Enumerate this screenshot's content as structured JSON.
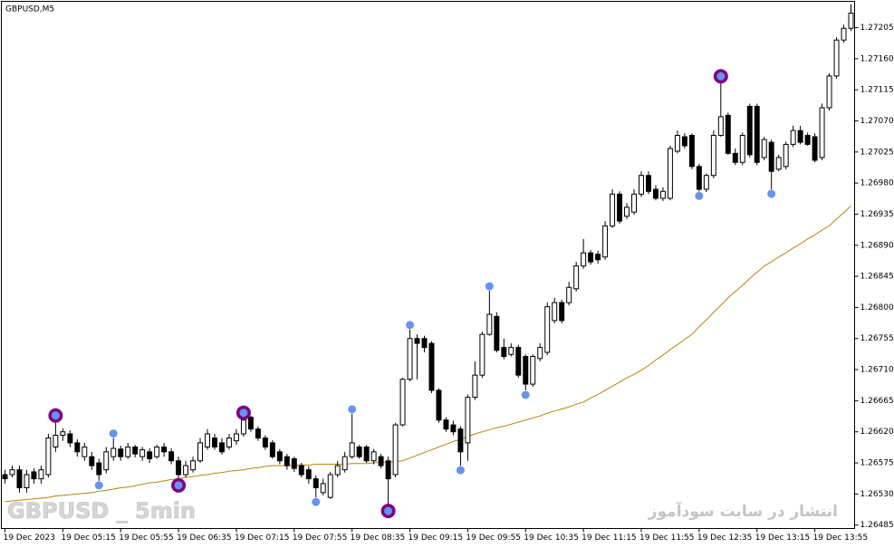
{
  "chart_data": {
    "type": "candlestick",
    "title": "GBPUSD,M5",
    "watermarks": [
      "GBPUSD _ 5min",
      "انتشار در سایت سودآموز"
    ],
    "categories": [
      "19 Dec 2023",
      null,
      null,
      null,
      null,
      null,
      null,
      null,
      "19 Dec 05:15",
      null,
      null,
      null,
      null,
      null,
      null,
      null,
      "19 Dec 05:55",
      null,
      null,
      null,
      null,
      null,
      null,
      null,
      "19 Dec 06:35",
      null,
      null,
      null,
      null,
      null,
      null,
      null,
      "19 Dec 07:15",
      null,
      null,
      null,
      null,
      null,
      null,
      null,
      "19 Dec 07:55",
      null,
      null,
      null,
      null,
      null,
      null,
      null,
      "19 Dec 08:35",
      null,
      null,
      null,
      null,
      null,
      null,
      null,
      "19 Dec 09:15",
      null,
      null,
      null,
      null,
      null,
      null,
      null,
      "19 Dec 09:55",
      null,
      null,
      null,
      null,
      null,
      null,
      null,
      "19 Dec 10:35",
      null,
      null,
      null,
      null,
      null,
      null,
      null,
      "19 Dec 11:15",
      null,
      null,
      null,
      null,
      null,
      null,
      null,
      "19 Dec 11:55",
      null,
      null,
      null,
      null,
      null,
      null,
      null,
      "19 Dec 12:35",
      null,
      null,
      null,
      null,
      null,
      null,
      null,
      "19 Dec 13:15",
      null,
      null,
      null,
      null,
      null,
      null,
      null,
      "19 Dec 13:55",
      null,
      null,
      null,
      null,
      null
    ],
    "open": [
      1.26558,
      1.26558,
      1.26565,
      1.26539,
      1.26562,
      1.26552,
      1.26558,
      1.26598,
      1.26615,
      1.26617,
      1.26604,
      1.26584,
      1.26584,
      1.26575,
      1.26565,
      1.26584,
      1.26595,
      1.26584,
      1.26598,
      1.26584,
      1.26591,
      1.26584,
      1.26598,
      1.26591,
      1.26578,
      1.26558,
      1.26565,
      1.26578,
      1.26598,
      1.26611,
      1.26604,
      1.26598,
      1.26607,
      1.26617,
      1.26641,
      1.26624,
      1.26611,
      1.26604,
      1.26591,
      1.26584,
      1.26581,
      1.26571,
      1.26565,
      1.26552,
      1.26532,
      1.26525,
      1.26558,
      1.26565,
      1.26584,
      1.26598,
      1.26598,
      1.26578,
      1.26584,
      1.26578,
      1.26558,
      1.2663,
      1.26696,
      1.26755,
      1.26755,
      1.26748,
      1.2668,
      1.26637,
      1.2663,
      1.26624,
      1.26604,
      1.2667,
      1.26702,
      1.26761,
      1.26787,
      1.26742,
      1.26732,
      1.26742,
      1.26729,
      1.26689,
      1.26726,
      1.26735,
      1.26781,
      1.26807,
      1.26807,
      1.26827,
      1.2686,
      1.26879,
      1.26877,
      1.26873,
      1.26918,
      1.26964,
      1.26932,
      1.26938,
      1.26964,
      1.26991,
      1.26971,
      1.26958,
      1.26958,
      1.27026,
      1.27047,
      1.27049,
      1.27004,
      1.26971,
      1.26991,
      1.27049,
      1.27078,
      1.27023,
      1.2701,
      1.27091,
      1.27091,
      1.27017,
      1.27039,
      1.27,
      1.27004,
      1.27036,
      1.27056,
      1.27049,
      1.27047,
      1.27017,
      1.27089,
      1.27135,
      1.27187,
      1.27204
    ],
    "high": [
      1.26565,
      1.26571,
      1.26571,
      1.26565,
      1.26567,
      1.26571,
      1.26617,
      1.26637,
      1.26625,
      1.26622,
      1.26609,
      1.26604,
      1.26591,
      1.26581,
      1.26598,
      1.26611,
      1.266,
      1.26604,
      1.26601,
      1.26598,
      1.26596,
      1.26601,
      1.26604,
      1.26596,
      1.26584,
      1.26578,
      1.26584,
      1.26611,
      1.26624,
      1.26617,
      1.26611,
      1.26617,
      1.26624,
      1.26641,
      1.26643,
      1.26628,
      1.26615,
      1.26608,
      1.26595,
      1.26588,
      1.26584,
      1.26575,
      1.2657,
      1.26557,
      1.26552,
      1.26562,
      1.26578,
      1.26591,
      1.26646,
      1.26601,
      1.26601,
      1.26595,
      1.26588,
      1.26584,
      1.26633,
      1.26698,
      1.26768,
      1.26761,
      1.26759,
      1.26751,
      1.26683,
      1.26641,
      1.26636,
      1.26628,
      1.26674,
      1.26722,
      1.26765,
      1.26824,
      1.26793,
      1.26755,
      1.26748,
      1.26746,
      1.26732,
      1.26732,
      1.26748,
      1.26807,
      1.26814,
      1.26811,
      1.26837,
      1.26866,
      1.26899,
      1.26883,
      1.26882,
      1.26925,
      1.26971,
      1.26968,
      1.26951,
      1.26971,
      1.26997,
      1.26997,
      1.26977,
      1.26974,
      1.27034,
      1.27056,
      1.27052,
      1.27052,
      1.27008,
      1.26994,
      1.27056,
      1.27128,
      1.27082,
      1.2703,
      1.27053,
      1.27095,
      1.27095,
      1.27047,
      1.27043,
      1.27021,
      1.2704,
      1.27063,
      1.27063,
      1.27053,
      1.27052,
      1.27095,
      1.27139,
      1.27191,
      1.27209,
      1.27239
    ],
    "low": [
      1.26545,
      1.26554,
      1.26532,
      1.26532,
      1.26545,
      1.26545,
      1.26554,
      1.26591,
      1.26607,
      1.26598,
      1.26584,
      1.26578,
      1.26565,
      1.26549,
      1.2656,
      1.26578,
      1.26578,
      1.26581,
      1.26583,
      1.26578,
      1.26575,
      1.26581,
      1.26584,
      1.26573,
      1.26549,
      1.26554,
      1.26561,
      1.26575,
      1.26594,
      1.26594,
      1.26587,
      1.26594,
      1.26601,
      1.26613,
      1.2662,
      1.26607,
      1.26594,
      1.26581,
      1.26573,
      1.26565,
      1.26562,
      1.26554,
      1.26545,
      1.26525,
      1.26528,
      1.26523,
      1.26554,
      1.26561,
      1.26581,
      1.26581,
      1.26575,
      1.26573,
      1.26567,
      1.26512,
      1.26554,
      1.26628,
      1.26693,
      1.26696,
      1.26735,
      1.26676,
      1.26633,
      1.2662,
      1.26615,
      1.26571,
      1.26578,
      1.26666,
      1.26698,
      1.26759,
      1.26735,
      1.26725,
      1.26729,
      1.26698,
      1.2668,
      1.26685,
      1.26722,
      1.26731,
      1.26777,
      1.26777,
      1.26803,
      1.26823,
      1.26856,
      1.26862,
      1.26863,
      1.26869,
      1.26915,
      1.26921,
      1.26928,
      1.26934,
      1.2696,
      1.26964,
      1.26955,
      1.26954,
      1.26955,
      1.27023,
      1.2703,
      1.27,
      1.26968,
      1.26967,
      1.26987,
      1.27047,
      1.27021,
      1.27006,
      1.27006,
      1.27017,
      1.27006,
      1.27013,
      1.26971,
      1.26997,
      1.27,
      1.27032,
      1.27036,
      1.27034,
      1.2701,
      1.27013,
      1.27085,
      1.27131,
      1.27183,
      1.272
    ],
    "close": [
      1.26552,
      1.26565,
      1.26539,
      1.26558,
      1.26552,
      1.26565,
      1.26611,
      1.26615,
      1.2662,
      1.26604,
      1.26591,
      1.26598,
      1.26571,
      1.26558,
      1.26591,
      1.26596,
      1.26584,
      1.26598,
      1.26588,
      1.26594,
      1.26581,
      1.26598,
      1.26591,
      1.26578,
      1.26558,
      1.26571,
      1.26578,
      1.26604,
      1.26617,
      1.26598,
      1.26591,
      1.26611,
      1.26617,
      1.26637,
      1.26624,
      1.26611,
      1.26598,
      1.26584,
      1.26578,
      1.26571,
      1.26567,
      1.26558,
      1.26552,
      1.26539,
      1.26545,
      1.26558,
      1.26571,
      1.26584,
      1.26604,
      1.26584,
      1.26578,
      1.26591,
      1.26571,
      1.26552,
      1.2663,
      1.26696,
      1.26755,
      1.26748,
      1.26742,
      1.2668,
      1.26637,
      1.26624,
      1.2662,
      1.26591,
      1.2667,
      1.26702,
      1.26761,
      1.2679,
      1.26738,
      1.26729,
      1.26742,
      1.26702,
      1.26689,
      1.26729,
      1.26742,
      1.26801,
      1.26807,
      1.26781,
      1.26829,
      1.2686,
      1.26879,
      1.26866,
      1.26869,
      1.26918,
      1.26964,
      1.26925,
      1.26945,
      1.26964,
      1.26991,
      1.26968,
      1.26958,
      1.26968,
      1.2703,
      1.27049,
      1.27034,
      1.27004,
      1.26971,
      1.26991,
      1.27049,
      1.27076,
      1.27023,
      1.2701,
      1.27049,
      1.27021,
      1.2701,
      1.27043,
      1.26997,
      1.27017,
      1.27036,
      1.27056,
      1.27039,
      1.27036,
      1.27013,
      1.27089,
      1.27135,
      1.27187,
      1.27204,
      1.27226
    ],
    "up_color": "#ffffff",
    "down_color": "#000000",
    "wick_color": "#000000",
    "overlays": [
      {
        "type": "line",
        "color": "#b8860b",
        "values": [
          1.26519,
          1.2652,
          1.26521,
          1.26522,
          1.26523,
          1.26524,
          1.26525,
          1.26527,
          1.26528,
          1.26529,
          1.2653,
          1.26531,
          1.26532,
          1.26534,
          1.26535,
          1.26537,
          1.26539,
          1.2654,
          1.26542,
          1.26544,
          1.26546,
          1.26547,
          1.26549,
          1.26551,
          1.26552,
          1.26554,
          1.26555,
          1.26557,
          1.26558,
          1.2656,
          1.26561,
          1.26563,
          1.26564,
          1.26565,
          1.26567,
          1.26568,
          1.2657,
          1.26571,
          1.26571,
          1.26571,
          1.26572,
          1.26572,
          1.26572,
          1.26573,
          1.26573,
          1.26573,
          1.26573,
          1.26573,
          1.26574,
          1.26574,
          1.26574,
          1.26575,
          1.26576,
          1.26576,
          1.26577,
          1.26578,
          1.26582,
          1.26586,
          1.2659,
          1.26594,
          1.26598,
          1.26602,
          1.26606,
          1.26609,
          1.26613,
          1.26617,
          1.2662,
          1.26623,
          1.26626,
          1.26628,
          1.26631,
          1.26634,
          1.26637,
          1.2664,
          1.26643,
          1.26647,
          1.2665,
          1.26653,
          1.26656,
          1.2666,
          1.26663,
          1.26669,
          1.26674,
          1.2668,
          1.26686,
          1.26692,
          1.26698,
          1.26703,
          1.26709,
          1.26716,
          1.26724,
          1.26731,
          1.26739,
          1.26746,
          1.26754,
          1.26761,
          1.26772,
          1.26782,
          1.26793,
          1.26803,
          1.26814,
          1.26823,
          1.26832,
          1.26842,
          1.26851,
          1.2686,
          1.26866,
          1.26873,
          1.26879,
          1.26886,
          1.26892,
          1.26899,
          1.26905,
          1.26912,
          1.26918,
          1.26928,
          1.26937,
          1.26947
        ]
      },
      {
        "type": "marker",
        "color": "#800080",
        "size": 8,
        "values": [
          null,
          null,
          null,
          null,
          null,
          null,
          null,
          1.26637,
          null,
          null,
          null,
          null,
          null,
          null,
          null,
          null,
          null,
          null,
          null,
          null,
          null,
          null,
          null,
          null,
          1.26549,
          null,
          null,
          null,
          null,
          null,
          null,
          null,
          null,
          1.26641,
          null,
          null,
          null,
          null,
          null,
          null,
          null,
          null,
          null,
          null,
          null,
          null,
          null,
          null,
          null,
          null,
          null,
          null,
          null,
          1.26512,
          null,
          null,
          null,
          null,
          null,
          null,
          null,
          null,
          null,
          null,
          null,
          null,
          null,
          null,
          null,
          null,
          null,
          null,
          null,
          null,
          null,
          null,
          null,
          null,
          null,
          null,
          null,
          null,
          null,
          null,
          null,
          null,
          null,
          null,
          null,
          null,
          null,
          null,
          null,
          null,
          null,
          null,
          null,
          null,
          null,
          1.27128,
          null,
          null,
          null,
          null,
          null,
          null,
          null,
          null,
          null,
          null,
          null,
          null,
          null,
          null,
          null,
          null,
          null,
          null
        ]
      },
      {
        "type": "marker",
        "color": "#6495ed",
        "size": 4.5,
        "values": [
          null,
          null,
          null,
          null,
          null,
          null,
          null,
          1.26637,
          null,
          null,
          null,
          null,
          null,
          1.26549,
          null,
          1.26611,
          null,
          null,
          null,
          null,
          null,
          null,
          null,
          null,
          1.26549,
          null,
          null,
          null,
          null,
          null,
          null,
          null,
          null,
          1.26641,
          null,
          null,
          null,
          null,
          null,
          null,
          null,
          null,
          null,
          1.26525,
          null,
          null,
          null,
          null,
          1.26646,
          null,
          null,
          null,
          null,
          1.26512,
          null,
          null,
          1.26768,
          null,
          null,
          null,
          null,
          null,
          null,
          1.26571,
          null,
          null,
          null,
          1.26824,
          null,
          null,
          null,
          null,
          1.2668,
          null,
          null,
          null,
          null,
          null,
          null,
          null,
          null,
          null,
          null,
          null,
          null,
          null,
          null,
          null,
          null,
          null,
          null,
          null,
          null,
          null,
          null,
          null,
          1.26968,
          null,
          null,
          1.27128,
          null,
          null,
          null,
          null,
          null,
          null,
          1.26971,
          null,
          null,
          null,
          null,
          null,
          null,
          null,
          null,
          null,
          null,
          null
        ]
      }
    ],
    "ylim": [
      1.2648,
      1.27243
    ],
    "yticks": [
      1.27205,
      {
        "value": 1.2716,
        "label": "1.27160"
      },
      1.27115,
      {
        "value": 1.2707,
        "label": "1.27070"
      },
      1.27025,
      {
        "value": 1.2698,
        "label": "1.26980"
      },
      1.26935,
      {
        "value": 1.2689,
        "label": "1.26890"
      },
      1.26845,
      {
        "value": 1.268,
        "label": "1.26800"
      },
      1.26755,
      {
        "value": 1.2671,
        "label": "1.26710"
      },
      1.26665,
      {
        "value": 1.2662,
        "label": "1.26620"
      },
      1.26575,
      {
        "value": 1.2653,
        "label": "1.26530"
      },
      1.26485
    ]
  }
}
